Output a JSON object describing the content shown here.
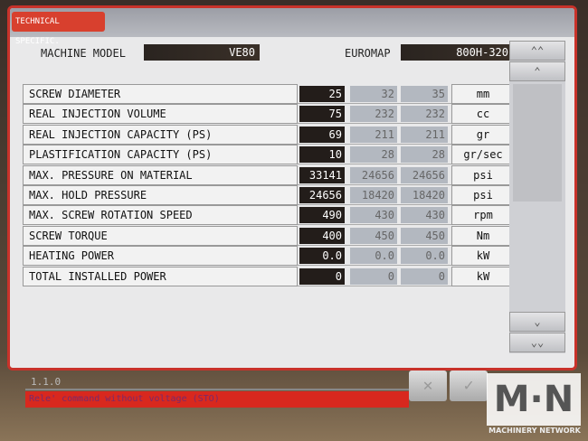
{
  "tab": "TECHNICAL SPECIFIC.",
  "machine_model": {
    "label": "MACHINE MODEL",
    "value": "VE80"
  },
  "euromap": {
    "label": "EUROMAP",
    "value": "800H-320"
  },
  "rows": [
    {
      "label": "SCREW DIAMETER",
      "v1": "25",
      "v2": "32",
      "v3": "35",
      "unit": "mm"
    },
    {
      "label": "REAL INJECTION VOLUME",
      "v1": "75",
      "v2": "232",
      "v3": "232",
      "unit": "cc"
    },
    {
      "label": "REAL INJECTION CAPACITY (PS)",
      "v1": "69",
      "v2": "211",
      "v3": "211",
      "unit": "gr"
    },
    {
      "label": "PLASTIFICATION CAPACITY (PS)",
      "v1": "10",
      "v2": "28",
      "v3": "28",
      "unit": "gr/sec"
    },
    {
      "label": "MAX. PRESSURE ON MATERIAL",
      "v1": "33141",
      "v2": "24656",
      "v3": "24656",
      "unit": "psi"
    },
    {
      "label": "MAX. HOLD PRESSURE",
      "v1": "24656",
      "v2": "18420",
      "v3": "18420",
      "unit": "psi"
    },
    {
      "label": "MAX. SCREW ROTATION SPEED",
      "v1": "490",
      "v2": "430",
      "v3": "430",
      "unit": "rpm"
    },
    {
      "label": "SCREW TORQUE",
      "v1": "400",
      "v2": "450",
      "v3": "450",
      "unit": "Nm"
    },
    {
      "label": "HEATING POWER",
      "v1": "0.0",
      "v2": "0.0",
      "v3": "0.0",
      "unit": "kW"
    },
    {
      "label": "TOTAL INSTALLED POWER",
      "v1": "0",
      "v2": "0",
      "v3": "0",
      "unit": "kW"
    }
  ],
  "scroll": {
    "top": "⌃⌃",
    "up": "⌃",
    "down": "⌄",
    "bottom": "⌄⌄"
  },
  "version": "1.1.0",
  "message": "Rele' command without voltage (STO)",
  "buttons": {
    "cancel": "✕",
    "confirm": "✓"
  },
  "watermark": {
    "logo": "M·N",
    "text": "MACHINERY NETWORK"
  }
}
